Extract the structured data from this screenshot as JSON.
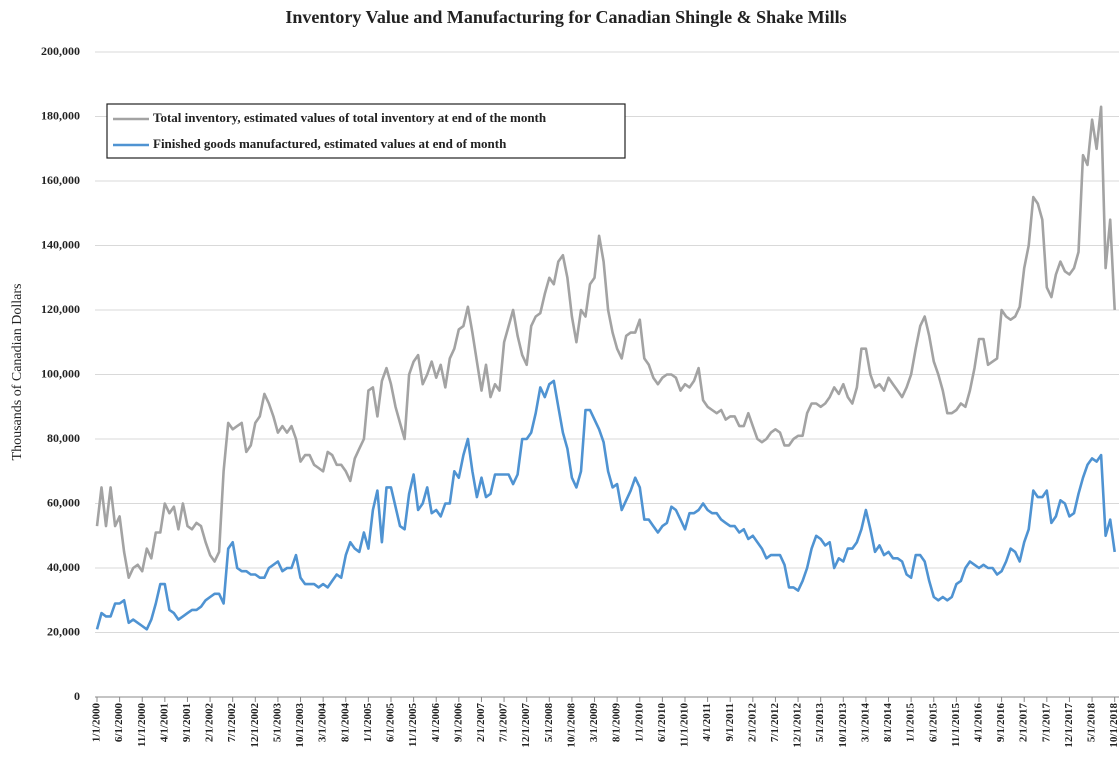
{
  "chart_data": {
    "type": "line",
    "title": "Inventory Value and Manufacturing for Canadian Shingle & Shake Mills",
    "y_label": "Thousands of Canadian Dollars",
    "categories": [
      "1/1/2000",
      null,
      null,
      null,
      null,
      "6/1/2000",
      null,
      null,
      null,
      null,
      "11/1/2000",
      null,
      null,
      null,
      null,
      "4/1/2001",
      null,
      null,
      null,
      null,
      "9/1/2001",
      null,
      null,
      null,
      null,
      "2/1/2002",
      null,
      null,
      null,
      null,
      "7/1/2002",
      null,
      null,
      null,
      null,
      "12/1/2002",
      null,
      null,
      null,
      null,
      "5/1/2003",
      null,
      null,
      null,
      null,
      "10/1/2003",
      null,
      null,
      null,
      null,
      "3/1/2004",
      null,
      null,
      null,
      null,
      "8/1/2004",
      null,
      null,
      null,
      null,
      "1/1/2005",
      null,
      null,
      null,
      null,
      "6/1/2005",
      null,
      null,
      null,
      null,
      "11/1/2005",
      null,
      null,
      null,
      null,
      "4/1/2006",
      null,
      null,
      null,
      null,
      "9/1/2006",
      null,
      null,
      null,
      null,
      "2/1/2007",
      null,
      null,
      null,
      null,
      "7/1/2007",
      null,
      null,
      null,
      null,
      "12/1/2007",
      null,
      null,
      null,
      null,
      "5/1/2008",
      null,
      null,
      null,
      null,
      "10/1/2008",
      null,
      null,
      null,
      null,
      "3/1/2009",
      null,
      null,
      null,
      null,
      "8/1/2009",
      null,
      null,
      null,
      null,
      "1/1/2010",
      null,
      null,
      null,
      null,
      "6/1/2010",
      null,
      null,
      null,
      null,
      "11/1/2010",
      null,
      null,
      null,
      null,
      "4/1/2011",
      null,
      null,
      null,
      null,
      "9/1/2011",
      null,
      null,
      null,
      null,
      "2/1/2012",
      null,
      null,
      null,
      null,
      "7/1/2012",
      null,
      null,
      null,
      null,
      "12/1/2012",
      null,
      null,
      null,
      null,
      "5/1/2013",
      null,
      null,
      null,
      null,
      "10/1/2013",
      null,
      null,
      null,
      null,
      "3/1/2014",
      null,
      null,
      null,
      null,
      "8/1/2014",
      null,
      null,
      null,
      null,
      "1/1/2015",
      null,
      null,
      null,
      null,
      "6/1/2015",
      null,
      null,
      null,
      null,
      "11/1/2015",
      null,
      null,
      null,
      null,
      "4/1/2016",
      null,
      null,
      null,
      null,
      "9/1/2016",
      null,
      null,
      null,
      null,
      "2/1/2017",
      null,
      null,
      null,
      null,
      "7/1/2017",
      null,
      null,
      null,
      null,
      "12/1/2017",
      null,
      null,
      null,
      null,
      "5/1/2018",
      null,
      null,
      null,
      null,
      "10/1/2018"
    ],
    "series": [
      {
        "name": "Total inventory, estimated values of total inventory at end of the month",
        "color": "#a3a3a3",
        "values": [
          53000,
          65000,
          53000,
          65000,
          53000,
          56000,
          45000,
          37000,
          40000,
          41000,
          39000,
          46000,
          43000,
          51000,
          51000,
          60000,
          57000,
          59000,
          52000,
          60000,
          53000,
          52000,
          54000,
          53000,
          48000,
          44000,
          42000,
          45000,
          70000,
          85000,
          83000,
          84000,
          85000,
          76000,
          78000,
          85000,
          87000,
          94000,
          91000,
          87000,
          82000,
          84000,
          82000,
          84000,
          80000,
          73000,
          75000,
          75000,
          72000,
          71000,
          70000,
          76000,
          75000,
          72000,
          72000,
          70000,
          67000,
          74000,
          77000,
          80000,
          95000,
          96000,
          87000,
          98000,
          102000,
          97000,
          90000,
          85000,
          80000,
          100000,
          104000,
          106000,
          97000,
          100000,
          104000,
          99000,
          103000,
          96000,
          105000,
          108000,
          114000,
          115000,
          121000,
          113000,
          104000,
          95000,
          103000,
          93000,
          97000,
          95000,
          110000,
          115000,
          120000,
          112000,
          106000,
          103000,
          115000,
          118000,
          119000,
          125000,
          130000,
          128000,
          135000,
          137000,
          130000,
          118000,
          110000,
          120000,
          118000,
          128000,
          130000,
          143000,
          135000,
          120000,
          113000,
          108000,
          105000,
          112000,
          113000,
          113000,
          117000,
          105000,
          103000,
          99000,
          97000,
          99000,
          100000,
          100000,
          99000,
          95000,
          97000,
          96000,
          98000,
          102000,
          92000,
          90000,
          89000,
          88000,
          89000,
          86000,
          87000,
          87000,
          84000,
          84000,
          88000,
          84000,
          80000,
          79000,
          80000,
          82000,
          83000,
          82000,
          78000,
          78000,
          80000,
          81000,
          81000,
          88000,
          91000,
          91000,
          90000,
          91000,
          93000,
          96000,
          94000,
          97000,
          93000,
          91000,
          96000,
          108000,
          108000,
          100000,
          96000,
          97000,
          95000,
          99000,
          97000,
          95000,
          93000,
          96000,
          100000,
          108000,
          115000,
          118000,
          112000,
          104000,
          100000,
          95000,
          88000,
          88000,
          89000,
          91000,
          90000,
          95000,
          102000,
          111000,
          111000,
          103000,
          104000,
          105000,
          120000,
          118000,
          117000,
          118000,
          121000,
          133000,
          140000,
          155000,
          153000,
          148000,
          127000,
          124000,
          131000,
          135000,
          132000,
          131000,
          133000,
          138000,
          168000,
          165000,
          179000,
          170000,
          183000,
          133000,
          148000,
          120000
        ]
      },
      {
        "name": "Finished goods manufactured, estimated values at end of  month",
        "color": "#4f93d2",
        "values": [
          21000,
          26000,
          25000,
          25000,
          29000,
          29000,
          30000,
          23000,
          24000,
          23000,
          22000,
          21000,
          24000,
          29000,
          35000,
          35000,
          27000,
          26000,
          24000,
          25000,
          26000,
          27000,
          27000,
          28000,
          30000,
          31000,
          32000,
          32000,
          29000,
          46000,
          48000,
          40000,
          39000,
          39000,
          38000,
          38000,
          37000,
          37000,
          40000,
          41000,
          42000,
          39000,
          40000,
          40000,
          44000,
          37000,
          35000,
          35000,
          35000,
          34000,
          35000,
          34000,
          36000,
          38000,
          37000,
          44000,
          48000,
          46000,
          45000,
          51000,
          46000,
          58000,
          64000,
          48000,
          65000,
          65000,
          59000,
          53000,
          52000,
          63000,
          69000,
          58000,
          60000,
          65000,
          57000,
          58000,
          56000,
          60000,
          60000,
          70000,
          68000,
          75000,
          80000,
          70000,
          62000,
          68000,
          62000,
          63000,
          69000,
          69000,
          69000,
          69000,
          66000,
          69000,
          80000,
          80000,
          82000,
          88000,
          96000,
          93000,
          97000,
          98000,
          90000,
          82000,
          77000,
          68000,
          65000,
          70000,
          89000,
          89000,
          86000,
          83000,
          79000,
          70000,
          65000,
          66000,
          58000,
          61000,
          64000,
          68000,
          65000,
          55000,
          55000,
          53000,
          51000,
          53000,
          54000,
          59000,
          58000,
          55000,
          52000,
          57000,
          57000,
          58000,
          60000,
          58000,
          57000,
          57000,
          55000,
          54000,
          53000,
          53000,
          51000,
          52000,
          49000,
          50000,
          48000,
          46000,
          43000,
          44000,
          44000,
          44000,
          41000,
          34000,
          34000,
          33000,
          36000,
          40000,
          46000,
          50000,
          49000,
          47000,
          48000,
          40000,
          43000,
          42000,
          46000,
          46000,
          48000,
          52000,
          58000,
          52000,
          45000,
          47000,
          44000,
          45000,
          43000,
          43000,
          42000,
          38000,
          37000,
          44000,
          44000,
          42000,
          36000,
          31000,
          30000,
          31000,
          30000,
          31000,
          35000,
          36000,
          40000,
          42000,
          41000,
          40000,
          41000,
          40000,
          40000,
          38000,
          39000,
          42000,
          46000,
          45000,
          42000,
          48000,
          52000,
          64000,
          62000,
          62000,
          64000,
          54000,
          56000,
          61000,
          60000,
          56000,
          57000,
          63000,
          68000,
          72000,
          74000,
          73000,
          75000,
          50000,
          55000,
          45000
        ]
      }
    ],
    "ylim": [
      0,
      200000
    ],
    "yticks": [
      0,
      {
        "value": 20000,
        "label": "20,000"
      },
      {
        "value": 40000,
        "label": "40,000"
      },
      {
        "value": 60000,
        "label": "60,000"
      },
      {
        "value": 80000,
        "label": "80,000"
      },
      {
        "value": 100000,
        "label": "100,000"
      },
      {
        "value": 120000,
        "label": "120,000"
      },
      {
        "value": 140000,
        "label": "140,000"
      },
      {
        "value": 160000,
        "label": "160,000"
      },
      {
        "value": 180000,
        "label": "180,000"
      },
      {
        "value": 200000,
        "label": "200,000"
      }
    ],
    "grid": true,
    "legend": "upper left"
  }
}
